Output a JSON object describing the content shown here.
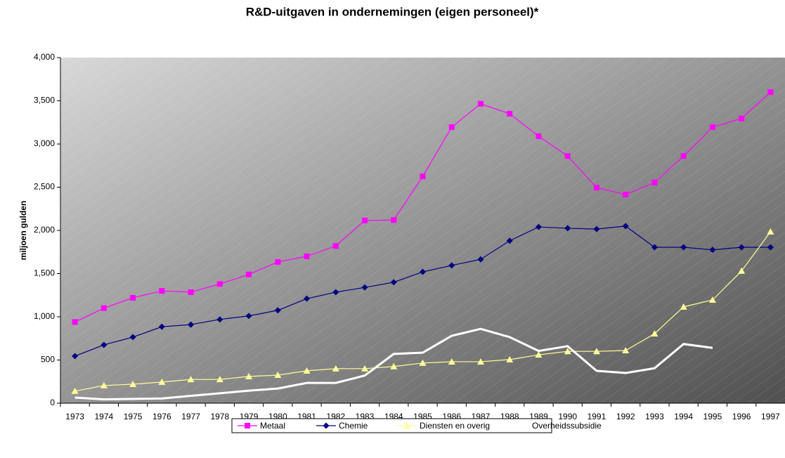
{
  "chart_data": {
    "type": "line",
    "title": "R&D-uitgaven in ondernemingen (eigen personeel)*",
    "y_label": "miljoen gulden",
    "categories": [
      "1973",
      "1974",
      "1975",
      "1976",
      "1977",
      "1978",
      "1979",
      "1980",
      "1981",
      "1982",
      "1983",
      "1984",
      "1985",
      "1986",
      "1987",
      "1988",
      "1989",
      "1990",
      "1991",
      "1992",
      "1993",
      "1994",
      "1995",
      "1996",
      "1997"
    ],
    "series": [
      {
        "name": "Metaal",
        "color": "#ff00ff",
        "marker": "square",
        "values": [
          940,
          1100,
          1220,
          1300,
          1285,
          1380,
          1490,
          1635,
          1700,
          1820,
          2115,
          2120,
          2625,
          3195,
          3465,
          3350,
          3090,
          2860,
          2495,
          2415,
          2555,
          2860,
          3195,
          3295,
          3600
        ]
      },
      {
        "name": "Chemie",
        "color": "#000080",
        "marker": "diamond",
        "values": [
          545,
          675,
          765,
          885,
          910,
          970,
          1010,
          1075,
          1210,
          1285,
          1340,
          1400,
          1520,
          1595,
          1665,
          1880,
          2040,
          2025,
          2015,
          2050,
          1805,
          1805,
          1775,
          1805,
          1805
        ]
      },
      {
        "name": "Diensten en overig",
        "color": "#ffff99",
        "marker": "triangle",
        "values": [
          140,
          205,
          220,
          245,
          275,
          275,
          310,
          325,
          375,
          400,
          400,
          425,
          465,
          480,
          480,
          505,
          560,
          600,
          600,
          610,
          805,
          1115,
          1195,
          1530,
          1985
        ]
      },
      {
        "name": "Overheidssubsidie",
        "color": "#ffffff",
        "line_width": 3,
        "values": [
          65,
          45,
          50,
          55,
          85,
          115,
          145,
          170,
          235,
          235,
          320,
          570,
          585,
          780,
          860,
          765,
          605,
          660,
          375,
          350,
          405,
          685,
          640,
          null,
          null
        ]
      }
    ],
    "ylim": [
      0,
      4000
    ],
    "yticks": [
      0,
      500,
      {
        "value": 1000,
        "label": "1,000"
      },
      {
        "value": 1500,
        "label": "1,500"
      },
      {
        "value": 2000,
        "label": "2,000"
      },
      {
        "value": 2500,
        "label": "2,500"
      },
      {
        "value": 3000,
        "label": "3,000"
      },
      {
        "value": 3500,
        "label": "3,500"
      },
      {
        "value": 4000,
        "label": "4,000"
      }
    ],
    "legend": "bottom"
  }
}
